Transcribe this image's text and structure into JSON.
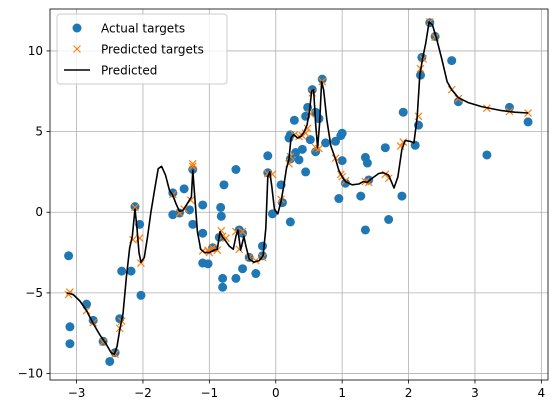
{
  "chart_data": {
    "type": "scatter",
    "title": "",
    "xlabel": "",
    "ylabel": "",
    "xlim": [
      -3.4,
      4.1
    ],
    "ylim": [
      -10.4,
      12.6
    ],
    "xticks": [
      -3,
      -2,
      -1,
      0,
      1,
      2,
      3,
      4
    ],
    "xtick_labels": [
      "−3",
      "−2",
      "−1",
      "0",
      "1",
      "2",
      "3",
      "4"
    ],
    "yticks": [
      -10,
      -5,
      0,
      5,
      10
    ],
    "ytick_labels": [
      "−10",
      "−5",
      "0",
      "5",
      "10"
    ],
    "grid": true,
    "legend_position": "top-left",
    "series": [
      {
        "name": "Actual targets",
        "marker": "circle",
        "color": "#1f77b4",
        "points": [
          [
            -3.12,
            -2.7
          ],
          [
            -3.1,
            -7.1
          ],
          [
            -3.1,
            -8.15
          ],
          [
            -2.85,
            -5.7
          ],
          [
            -2.75,
            -6.7
          ],
          [
            -2.6,
            -8.0
          ],
          [
            -2.5,
            -9.25
          ],
          [
            -2.42,
            -8.7
          ],
          [
            -2.35,
            -6.6
          ],
          [
            -2.32,
            -3.65
          ],
          [
            -2.18,
            -3.65
          ],
          [
            -2.12,
            0.35
          ],
          [
            -2.05,
            -0.75
          ],
          [
            -2.03,
            -5.15
          ],
          [
            -1.55,
            1.2
          ],
          [
            -1.55,
            -0.15
          ],
          [
            -1.45,
            -0.05
          ],
          [
            -1.38,
            1.45
          ],
          [
            -1.3,
            0.15
          ],
          [
            -1.25,
            2.65
          ],
          [
            -1.25,
            -0.75
          ],
          [
            -1.1,
            0.45
          ],
          [
            -1.1,
            -1.3
          ],
          [
            -1.1,
            -3.15
          ],
          [
            -1.02,
            -3.2
          ],
          [
            -0.95,
            -2.2
          ],
          [
            -0.85,
            -1.55
          ],
          [
            -0.83,
            0.3
          ],
          [
            -0.82,
            -0.25
          ],
          [
            -0.8,
            -4.1
          ],
          [
            -0.8,
            -4.65
          ],
          [
            -0.78,
            1.7
          ],
          [
            -0.6,
            2.65
          ],
          [
            -0.6,
            -4.1
          ],
          [
            -0.55,
            -1.1
          ],
          [
            -0.5,
            -1.3
          ],
          [
            -0.5,
            -3.5
          ],
          [
            -0.4,
            -2.8
          ],
          [
            -0.3,
            -3.8
          ],
          [
            -0.2,
            -2.1
          ],
          [
            -0.2,
            -2.7
          ],
          [
            -0.12,
            3.5
          ],
          [
            -0.12,
            2.45
          ],
          [
            -0.05,
            -0.1
          ],
          [
            0.08,
            1.7
          ],
          [
            0.1,
            0.6
          ],
          [
            0.2,
            4.6
          ],
          [
            0.22,
            4.8
          ],
          [
            0.22,
            3.3
          ],
          [
            0.22,
            -0.6
          ],
          [
            0.28,
            5.7
          ],
          [
            0.3,
            3.7
          ],
          [
            0.35,
            3.25
          ],
          [
            0.4,
            3.9
          ],
          [
            0.45,
            5.95
          ],
          [
            0.45,
            2.5
          ],
          [
            0.48,
            6.5
          ],
          [
            0.52,
            4.5
          ],
          [
            0.55,
            7.6
          ],
          [
            0.6,
            6.2
          ],
          [
            0.6,
            3.75
          ],
          [
            0.65,
            5.8
          ],
          [
            0.7,
            8.25
          ],
          [
            0.75,
            4.3
          ],
          [
            0.9,
            4.4
          ],
          [
            0.95,
            0.85
          ],
          [
            0.98,
            4.75
          ],
          [
            1.0,
            4.9
          ],
          [
            1.0,
            3.2
          ],
          [
            1.05,
            1.8
          ],
          [
            1.28,
            1.0
          ],
          [
            1.35,
            3.4
          ],
          [
            1.35,
            -1.1
          ],
          [
            1.38,
            3.05
          ],
          [
            1.4,
            2.0
          ],
          [
            1.65,
            4.0
          ],
          [
            1.7,
            -0.45
          ],
          [
            1.9,
            1.0
          ],
          [
            1.92,
            6.2
          ],
          [
            2.1,
            4.15
          ],
          [
            2.15,
            5.4
          ],
          [
            2.18,
            8.5
          ],
          [
            2.2,
            9.6
          ],
          [
            2.32,
            11.75
          ],
          [
            2.4,
            10.9
          ],
          [
            2.65,
            9.4
          ],
          [
            2.75,
            6.85
          ],
          [
            3.18,
            3.55
          ],
          [
            3.52,
            6.5
          ],
          [
            3.8,
            5.6
          ]
        ]
      },
      {
        "name": "Predicted targets",
        "marker": "x",
        "color": "#ff7f0e",
        "points": [
          [
            -3.12,
            -5.1
          ],
          [
            -3.1,
            -4.95
          ],
          [
            -2.85,
            -6.1
          ],
          [
            -2.75,
            -6.85
          ],
          [
            -2.6,
            -8.05
          ],
          [
            -2.42,
            -8.8
          ],
          [
            -2.35,
            -7.2
          ],
          [
            -2.32,
            -6.75
          ],
          [
            -2.15,
            -1.7
          ],
          [
            -2.12,
            0.3
          ],
          [
            -2.05,
            -1.6
          ],
          [
            -2.03,
            -3.15
          ],
          [
            -1.55,
            1.1
          ],
          [
            -1.45,
            -0.05
          ],
          [
            -1.38,
            0.2
          ],
          [
            -1.28,
            0.75
          ],
          [
            -1.25,
            2.85
          ],
          [
            -1.25,
            3.0
          ],
          [
            -1.1,
            -2.4
          ],
          [
            -1.02,
            -2.35
          ],
          [
            -1.0,
            -2.5
          ],
          [
            -0.95,
            -2.2
          ],
          [
            -0.88,
            -2.35
          ],
          [
            -0.82,
            -1.15
          ],
          [
            -0.8,
            -1.5
          ],
          [
            -0.75,
            -1.6
          ],
          [
            -0.6,
            -1.2
          ],
          [
            -0.55,
            -2.3
          ],
          [
            -0.5,
            -1.2
          ],
          [
            -0.4,
            -2.8
          ],
          [
            -0.3,
            -3.0
          ],
          [
            -0.2,
            -2.8
          ],
          [
            -0.12,
            2.4
          ],
          [
            -0.05,
            2.35
          ],
          [
            0.08,
            0.8
          ],
          [
            0.2,
            3.0
          ],
          [
            0.22,
            3.45
          ],
          [
            0.28,
            4.8
          ],
          [
            0.35,
            4.7
          ],
          [
            0.4,
            4.75
          ],
          [
            0.45,
            4.9
          ],
          [
            0.48,
            5.2
          ],
          [
            0.52,
            6.1
          ],
          [
            0.55,
            7.4
          ],
          [
            0.6,
            4.0
          ],
          [
            0.65,
            3.95
          ],
          [
            0.7,
            8.1
          ],
          [
            0.9,
            3.35
          ],
          [
            0.98,
            2.35
          ],
          [
            1.0,
            2.2
          ],
          [
            1.05,
            1.95
          ],
          [
            1.35,
            1.9
          ],
          [
            1.4,
            1.85
          ],
          [
            1.65,
            2.35
          ],
          [
            1.7,
            2.1
          ],
          [
            1.88,
            4.1
          ],
          [
            1.92,
            4.35
          ],
          [
            2.15,
            5.95
          ],
          [
            2.18,
            8.9
          ],
          [
            2.22,
            9.5
          ],
          [
            2.32,
            11.8
          ],
          [
            2.4,
            10.85
          ],
          [
            2.65,
            7.6
          ],
          [
            2.75,
            7.05
          ],
          [
            3.18,
            6.45
          ],
          [
            3.52,
            6.25
          ],
          [
            3.8,
            6.15
          ]
        ]
      },
      {
        "name": "Predicted",
        "marker": "line",
        "color": "#000000",
        "points": [
          [
            -3.15,
            -5.0
          ],
          [
            -3.05,
            -5.1
          ],
          [
            -2.95,
            -5.5
          ],
          [
            -2.85,
            -6.1
          ],
          [
            -2.75,
            -6.9
          ],
          [
            -2.65,
            -7.6
          ],
          [
            -2.55,
            -8.2
          ],
          [
            -2.48,
            -8.7
          ],
          [
            -2.43,
            -8.8
          ],
          [
            -2.39,
            -8.3
          ],
          [
            -2.35,
            -7.3
          ],
          [
            -2.3,
            -6.3
          ],
          [
            -2.25,
            -4.0
          ],
          [
            -2.2,
            -2.2
          ],
          [
            -2.16,
            -1.5
          ],
          [
            -2.12,
            0.2
          ],
          [
            -2.09,
            -1.0
          ],
          [
            -2.06,
            -2.5
          ],
          [
            -2.03,
            -3.1
          ],
          [
            -1.98,
            -2.8
          ],
          [
            -1.93,
            -1.5
          ],
          [
            -1.88,
            0.0
          ],
          [
            -1.82,
            1.5
          ],
          [
            -1.77,
            2.7
          ],
          [
            -1.72,
            2.85
          ],
          [
            -1.66,
            2.3
          ],
          [
            -1.6,
            1.35
          ],
          [
            -1.55,
            1.05
          ],
          [
            -1.5,
            0.5
          ],
          [
            -1.45,
            0.05
          ],
          [
            -1.4,
            0.1
          ],
          [
            -1.33,
            0.55
          ],
          [
            -1.27,
            0.95
          ],
          [
            -1.25,
            2.6
          ],
          [
            -1.23,
            1.5
          ],
          [
            -1.18,
            -1.2
          ],
          [
            -1.13,
            -2.3
          ],
          [
            -1.07,
            -2.5
          ],
          [
            -1.0,
            -2.5
          ],
          [
            -0.93,
            -2.35
          ],
          [
            -0.88,
            -2.3
          ],
          [
            -0.84,
            -1.2
          ],
          [
            -0.8,
            -1.55
          ],
          [
            -0.76,
            -1.75
          ],
          [
            -0.7,
            -2.1
          ],
          [
            -0.64,
            -2.3
          ],
          [
            -0.6,
            -1.5
          ],
          [
            -0.57,
            -1.1
          ],
          [
            -0.53,
            -2.35
          ],
          [
            -0.48,
            -1.5
          ],
          [
            -0.45,
            -2.1
          ],
          [
            -0.4,
            -2.9
          ],
          [
            -0.33,
            -3.1
          ],
          [
            -0.25,
            -3.0
          ],
          [
            -0.19,
            -2.7
          ],
          [
            -0.15,
            -1.0
          ],
          [
            -0.12,
            2.2
          ],
          [
            -0.09,
            2.5
          ],
          [
            -0.06,
            1.6
          ],
          [
            -0.02,
            0.2
          ],
          [
            0.03,
            -0.1
          ],
          [
            0.08,
            0.7
          ],
          [
            0.12,
            1.6
          ],
          [
            0.16,
            2.7
          ],
          [
            0.2,
            3.3
          ],
          [
            0.23,
            4.6
          ],
          [
            0.27,
            4.8
          ],
          [
            0.33,
            4.6
          ],
          [
            0.38,
            4.7
          ],
          [
            0.43,
            5.0
          ],
          [
            0.47,
            5.4
          ],
          [
            0.51,
            6.3
          ],
          [
            0.54,
            7.5
          ],
          [
            0.57,
            7.6
          ],
          [
            0.6,
            5.5
          ],
          [
            0.63,
            4.0
          ],
          [
            0.66,
            5.5
          ],
          [
            0.69,
            8.1
          ],
          [
            0.72,
            7.6
          ],
          [
            0.77,
            5.7
          ],
          [
            0.83,
            4.1
          ],
          [
            0.9,
            3.3
          ],
          [
            0.95,
            2.6
          ],
          [
            1.0,
            2.2
          ],
          [
            1.05,
            1.9
          ],
          [
            1.15,
            1.7
          ],
          [
            1.25,
            1.75
          ],
          [
            1.32,
            1.9
          ],
          [
            1.38,
            1.85
          ],
          [
            1.45,
            2.1
          ],
          [
            1.55,
            2.4
          ],
          [
            1.62,
            2.45
          ],
          [
            1.7,
            2.3
          ],
          [
            1.78,
            1.5
          ],
          [
            1.84,
            2.2
          ],
          [
            1.9,
            3.9
          ],
          [
            1.95,
            4.45
          ],
          [
            2.02,
            4.4
          ],
          [
            2.08,
            4.3
          ],
          [
            2.13,
            5.9
          ],
          [
            2.17,
            8.5
          ],
          [
            2.21,
            9.5
          ],
          [
            2.26,
            10.5
          ],
          [
            2.31,
            11.8
          ],
          [
            2.36,
            11.6
          ],
          [
            2.42,
            10.8
          ],
          [
            2.5,
            9.5
          ],
          [
            2.58,
            8.1
          ],
          [
            2.65,
            7.6
          ],
          [
            2.75,
            7.1
          ],
          [
            2.9,
            6.8
          ],
          [
            3.1,
            6.55
          ],
          [
            3.4,
            6.3
          ],
          [
            3.6,
            6.2
          ],
          [
            3.8,
            6.15
          ]
        ]
      }
    ]
  }
}
